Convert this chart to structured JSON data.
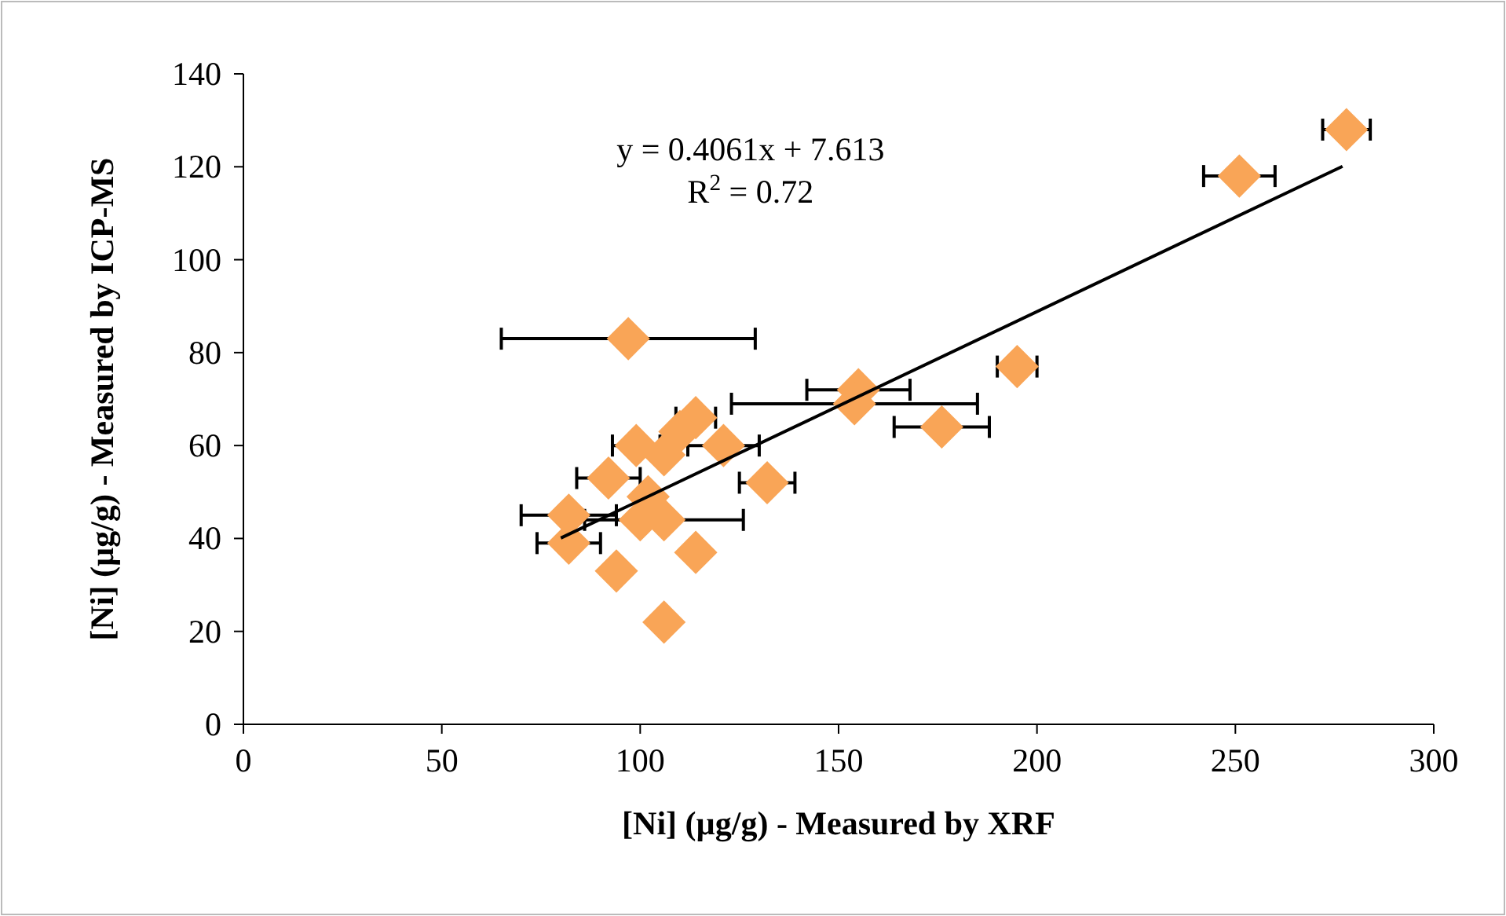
{
  "chart_data": {
    "type": "scatter",
    "xlabel": "[Ni] (µg/g) - Measured by XRF",
    "ylabel": "[Ni] (µg/g) - Measured by ICP-MS",
    "xlim": [
      0,
      300
    ],
    "ylim": [
      0,
      140
    ],
    "xticks": [
      0,
      50,
      100,
      150,
      200,
      250,
      300
    ],
    "yticks": [
      0,
      20,
      40,
      60,
      80,
      100,
      120,
      140
    ],
    "grid": false,
    "annotations": [
      "y = 0.4061x + 7.613\nR$^{2}$ = 0.72"
    ],
    "series": [
      {
        "color": "#f9a557",
        "marker": "diamond",
        "x": [
          97,
          278,
          251,
          195,
          176,
          155,
          154,
          132,
          121,
          114,
          110,
          106,
          99,
          92,
          102,
          100,
          106,
          82,
          82,
          94,
          114,
          106
        ],
        "values": [
          83,
          128,
          118,
          77,
          64,
          72,
          69,
          52,
          60,
          66,
          63,
          58,
          60,
          53,
          49,
          44,
          44,
          45,
          39,
          33,
          37,
          22
        ],
        "xerrors": [
          32,
          6,
          9,
          5,
          12,
          13,
          31,
          7,
          9,
          5,
          null,
          null,
          6,
          8,
          null,
          null,
          20,
          12,
          8,
          null,
          null,
          null
        ]
      },
      {
        "type": "line",
        "color": "#000000",
        "x": [
          80,
          277
        ],
        "values": [
          40.1,
          120.1
        ]
      }
    ]
  }
}
